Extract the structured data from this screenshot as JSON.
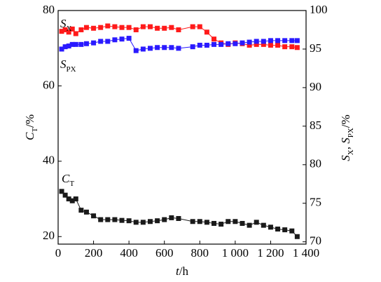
{
  "chart_data": {
    "type": "scatter-line",
    "xlabel": [
      "t",
      "/h"
    ],
    "ylabel": [
      "C",
      "T",
      "/%"
    ],
    "y2label": [
      "S",
      "X",
      ", ",
      "S",
      "PX",
      "/%"
    ],
    "x": [
      20,
      40,
      60,
      80,
      100,
      130,
      160,
      200,
      240,
      280,
      320,
      360,
      400,
      440,
      480,
      520,
      560,
      600,
      640,
      680,
      760,
      800,
      840,
      880,
      920,
      960,
      1000,
      1040,
      1080,
      1120,
      1160,
      1200,
      1240,
      1280,
      1320,
      1350
    ],
    "xlim": [
      0,
      1400
    ],
    "xticks": [
      0,
      200,
      400,
      600,
      800,
      {
        "value": 1000,
        "label": "1 000"
      },
      {
        "value": 1200,
        "label": "1 200"
      },
      {
        "value": 1400,
        "label": "1 400"
      }
    ],
    "ylim": [
      18,
      80
    ],
    "yticks": [
      20,
      40,
      60,
      80
    ],
    "y2lim": [
      69.7,
      100
    ],
    "y2ticks": [
      70,
      75,
      80,
      85,
      90,
      95,
      100
    ],
    "series": [
      {
        "name": [
          "S",
          "X"
        ],
        "color": "#ff1a1a",
        "axis": "y2",
        "values": [
          97.3,
          97.5,
          97.2,
          97.6,
          97.0,
          97.5,
          97.8,
          97.7,
          97.8,
          98.0,
          97.9,
          97.8,
          97.8,
          97.5,
          97.9,
          97.9,
          97.7,
          97.7,
          97.8,
          97.5,
          97.9,
          97.9,
          97.2,
          96.3,
          95.8,
          95.6,
          95.8,
          95.7,
          95.5,
          95.6,
          95.6,
          95.5,
          95.5,
          95.3,
          95.3,
          95.2
        ]
      },
      {
        "name": [
          "S",
          "PX"
        ],
        "color": "#2a1aff",
        "axis": "y2",
        "values": [
          95.0,
          95.3,
          95.4,
          95.6,
          95.6,
          95.6,
          95.7,
          95.8,
          96.0,
          96.0,
          96.2,
          96.3,
          96.4,
          94.8,
          95.0,
          95.1,
          95.2,
          95.2,
          95.2,
          95.1,
          95.3,
          95.5,
          95.5,
          95.6,
          95.6,
          95.7,
          95.7,
          95.8,
          95.9,
          96.0,
          96.0,
          96.1,
          96.1,
          96.1,
          96.1,
          96.1
        ]
      },
      {
        "name": [
          "C",
          "T"
        ],
        "color": "#1a1a1a",
        "axis": "y",
        "values": [
          32,
          31,
          30,
          29.5,
          30,
          27,
          26.5,
          25.5,
          24.5,
          24.5,
          24.5,
          24.3,
          24.2,
          23.8,
          23.8,
          24,
          24.2,
          24.5,
          25,
          24.8,
          24,
          24,
          23.8,
          23.5,
          23.3,
          24,
          24,
          23.5,
          23,
          23.8,
          23,
          22.5,
          22,
          21.8,
          21.5,
          20
        ]
      }
    ]
  }
}
